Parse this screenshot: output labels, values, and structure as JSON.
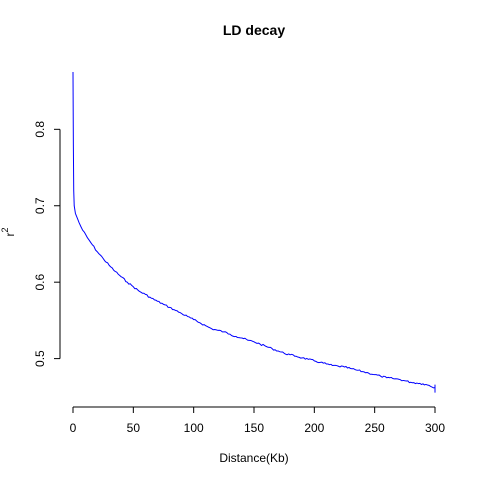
{
  "chart_data": {
    "type": "line",
    "title": "LD decay",
    "xlabel": "Distance(Kb)",
    "ylabel": "r",
    "ylabel_superscript": "2",
    "xlim": [
      0,
      300
    ],
    "ylim": [
      0.455,
      0.875
    ],
    "x_ticks": [
      0,
      50,
      100,
      150,
      200,
      250,
      300
    ],
    "y_ticks": [
      0.5,
      0.6,
      0.7,
      0.8
    ],
    "y_tick_labels": [
      "0.5",
      "0.6",
      "0.7",
      "0.8"
    ],
    "grid": false,
    "legend": "none",
    "series": [
      {
        "color": "#0000ff",
        "x": [
          0,
          0.3,
          0.6,
          1,
          1.5,
          2,
          3,
          5,
          8,
          12,
          16,
          20,
          25,
          30,
          35,
          40,
          45,
          50,
          55,
          60,
          65,
          70,
          75,
          80,
          85,
          90,
          95,
          100,
          105,
          110,
          115,
          120,
          125,
          130,
          135,
          140,
          145,
          150,
          155,
          160,
          165,
          170,
          175,
          180,
          185,
          190,
          195,
          200,
          205,
          210,
          215,
          220,
          225,
          230,
          235,
          240,
          245,
          250,
          255,
          260,
          265,
          270,
          275,
          280,
          285,
          290,
          295,
          300
        ],
        "y": [
          0.875,
          0.78,
          0.72,
          0.7,
          0.695,
          0.69,
          0.686,
          0.678,
          0.668,
          0.658,
          0.649,
          0.64,
          0.631,
          0.622,
          0.614,
          0.607,
          0.6,
          0.594,
          0.588,
          0.584,
          0.579,
          0.575,
          0.571,
          0.567,
          0.563,
          0.559,
          0.555,
          0.551,
          0.547,
          0.543,
          0.539,
          0.537,
          0.535,
          0.532,
          0.529,
          0.527,
          0.524,
          0.522,
          0.519,
          0.516,
          0.513,
          0.51,
          0.507,
          0.505,
          0.503,
          0.501,
          0.499,
          0.497,
          0.495,
          0.493,
          0.491,
          0.49,
          0.489,
          0.487,
          0.485,
          0.483,
          0.481,
          0.479,
          0.477,
          0.475,
          0.474,
          0.473,
          0.471,
          0.469,
          0.468,
          0.467,
          0.465,
          0.462
        ]
      }
    ]
  }
}
